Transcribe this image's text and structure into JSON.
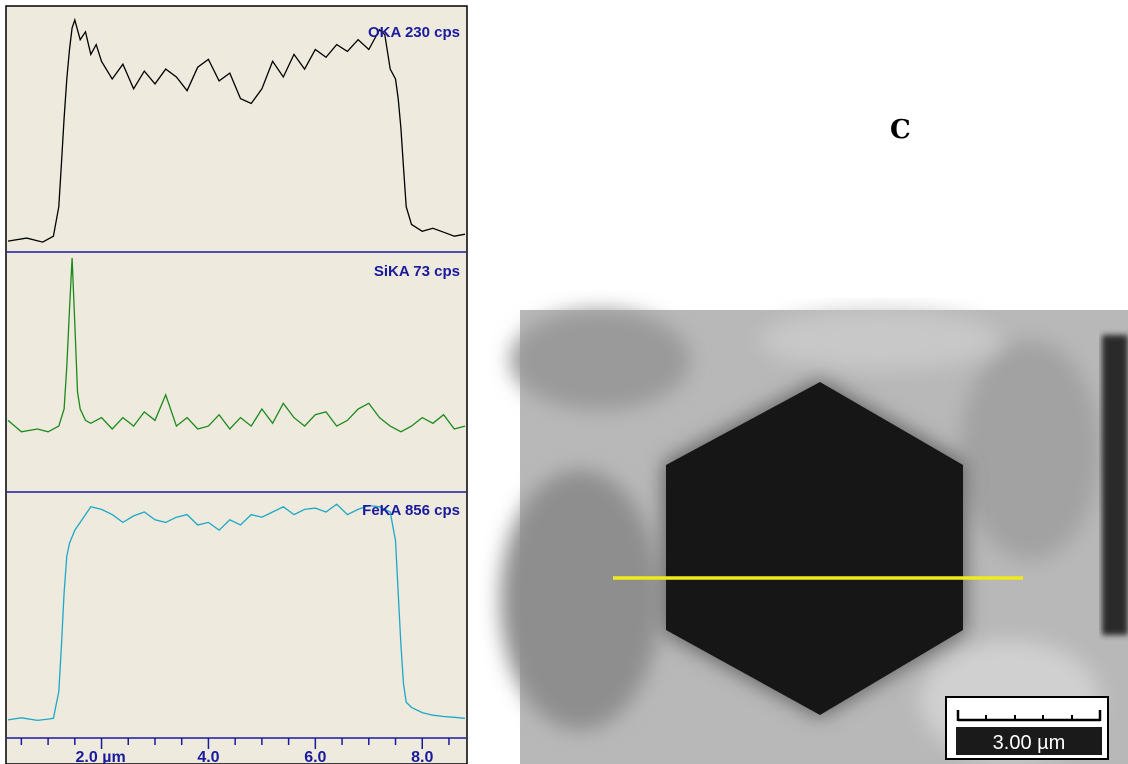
{
  "panel_letter": "C",
  "chart_data": {
    "type": "line",
    "x_axis": {
      "tick_labels": [
        "2.0 µm",
        "4.0",
        "6.0",
        "8.0"
      ],
      "range": [
        0.25,
        8.8
      ]
    },
    "series": [
      {
        "name": "OKA 230 cps",
        "color": "#000000",
        "x": [
          0.25,
          0.6,
          0.9,
          1.1,
          1.2,
          1.25,
          1.3,
          1.35,
          1.4,
          1.45,
          1.5,
          1.6,
          1.7,
          1.8,
          1.9,
          2.0,
          2.2,
          2.4,
          2.6,
          2.8,
          3.0,
          3.2,
          3.4,
          3.6,
          3.8,
          4.0,
          4.2,
          4.4,
          4.6,
          4.8,
          5.0,
          5.2,
          5.4,
          5.6,
          5.8,
          6.0,
          6.2,
          6.4,
          6.6,
          6.8,
          7.0,
          7.2,
          7.3,
          7.4,
          7.5,
          7.55,
          7.6,
          7.65,
          7.7,
          7.8,
          8.0,
          8.2,
          8.4,
          8.6,
          8.8
        ],
        "y": [
          5,
          8,
          4,
          10,
          40,
          85,
          130,
          170,
          200,
          222,
          230,
          210,
          218,
          195,
          205,
          188,
          170,
          185,
          160,
          178,
          165,
          180,
          172,
          158,
          182,
          190,
          168,
          176,
          150,
          145,
          160,
          188,
          172,
          195,
          180,
          200,
          192,
          205,
          198,
          210,
          200,
          220,
          215,
          180,
          170,
          150,
          120,
          80,
          40,
          22,
          15,
          18,
          14,
          10,
          12
        ]
      },
      {
        "name": "SiKA 73 cps",
        "color": "#1a8a1a",
        "x": [
          0.25,
          0.5,
          0.8,
          1.0,
          1.2,
          1.3,
          1.35,
          1.4,
          1.45,
          1.5,
          1.55,
          1.6,
          1.7,
          1.8,
          2.0,
          2.2,
          2.4,
          2.6,
          2.8,
          3.0,
          3.2,
          3.4,
          3.6,
          3.8,
          4.0,
          4.2,
          4.4,
          4.6,
          4.8,
          5.0,
          5.2,
          5.4,
          5.6,
          5.8,
          6.0,
          6.2,
          6.4,
          6.6,
          6.8,
          7.0,
          7.2,
          7.4,
          7.6,
          7.8,
          8.0,
          8.2,
          8.4,
          8.6,
          8.8
        ],
        "y": [
          16,
          12,
          13,
          12,
          14,
          20,
          35,
          55,
          73,
          50,
          26,
          20,
          16,
          15,
          17,
          13,
          17,
          14,
          19,
          16,
          25,
          14,
          17,
          13,
          14,
          18,
          13,
          17,
          14,
          20,
          15,
          22,
          17,
          14,
          18,
          19,
          14,
          16,
          20,
          22,
          17,
          14,
          12,
          14,
          17,
          15,
          18,
          13,
          14
        ]
      },
      {
        "name": "FeKA 856 cps",
        "color": "#1ea8c8",
        "x": [
          0.25,
          0.5,
          0.8,
          1.0,
          1.1,
          1.2,
          1.25,
          1.3,
          1.35,
          1.4,
          1.5,
          1.6,
          1.8,
          2.0,
          2.2,
          2.4,
          2.6,
          2.8,
          3.0,
          3.2,
          3.4,
          3.6,
          3.8,
          4.0,
          4.2,
          4.4,
          4.6,
          4.8,
          5.0,
          5.2,
          5.4,
          5.6,
          5.8,
          6.0,
          6.2,
          6.4,
          6.6,
          6.8,
          7.0,
          7.2,
          7.4,
          7.5,
          7.55,
          7.6,
          7.65,
          7.7,
          7.8,
          8.0,
          8.2,
          8.4,
          8.6,
          8.8
        ],
        "y": [
          12,
          20,
          10,
          15,
          18,
          120,
          300,
          500,
          640,
          690,
          740,
          770,
          830,
          820,
          800,
          770,
          795,
          810,
          780,
          770,
          790,
          800,
          760,
          770,
          740,
          780,
          760,
          800,
          790,
          810,
          830,
          800,
          820,
          825,
          810,
          840,
          800,
          820,
          835,
          830,
          810,
          700,
          500,
          300,
          150,
          80,
          60,
          40,
          30,
          25,
          22,
          18
        ]
      }
    ]
  },
  "micrograph": {
    "scale_bar_label": "3.00 µm",
    "line_color": "#f0ea1a"
  }
}
